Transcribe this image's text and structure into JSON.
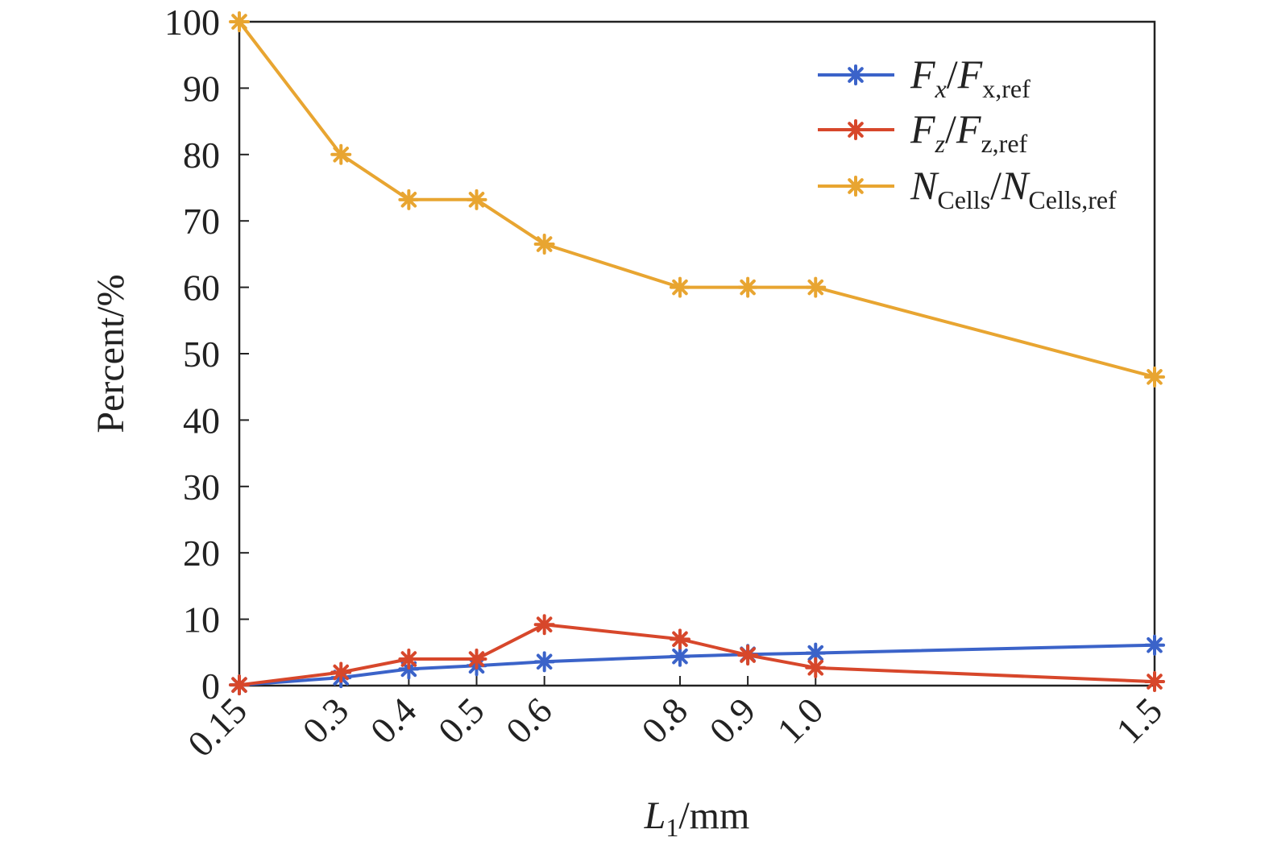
{
  "chart_data": {
    "type": "line",
    "x": [
      0.15,
      0.3,
      0.4,
      0.5,
      0.6,
      0.8,
      0.9,
      1.0,
      1.5
    ],
    "x_tick_labels": [
      "0.15",
      "0.3",
      "0.4",
      "0.5",
      "0.6",
      "0.8",
      "0.9",
      "1.0",
      "1.5"
    ],
    "y_ticks": [
      0,
      10,
      20,
      30,
      40,
      50,
      60,
      70,
      80,
      90,
      100
    ],
    "xlim": [
      0.15,
      1.5
    ],
    "ylim": [
      0,
      100
    ],
    "xlabel": {
      "main": "L",
      "sub": "1",
      "unit": "/mm"
    },
    "ylabel": "Percent/%",
    "grid": false,
    "legend_position": "top-right",
    "marker": "asterisk",
    "series": [
      {
        "name": "Fx/Fx,ref",
        "label_parts": {
          "a": "F",
          "a_sub": "x",
          "b": "F",
          "b_sub": "x,ref"
        },
        "color": "#3b63c9",
        "values": [
          0.1,
          1.2,
          2.5,
          3.0,
          3.6,
          4.4,
          4.7,
          4.9,
          6.1
        ]
      },
      {
        "name": "Fz/Fz,ref",
        "label_parts": {
          "a": "F",
          "a_sub": "z",
          "b": "F",
          "b_sub": "z,ref"
        },
        "color": "#d7472b",
        "values": [
          0.1,
          2.0,
          4.0,
          4.0,
          9.2,
          7.0,
          4.6,
          2.7,
          0.6
        ]
      },
      {
        "name": "NCells/NCells,ref",
        "label_parts": {
          "a": "N",
          "a_sub": "Cells",
          "b": "N",
          "b_sub": "Cells,ref"
        },
        "color": "#e8a531",
        "values": [
          100,
          80,
          73.2,
          73.2,
          66.5,
          60,
          60,
          60,
          46.5
        ]
      }
    ]
  }
}
